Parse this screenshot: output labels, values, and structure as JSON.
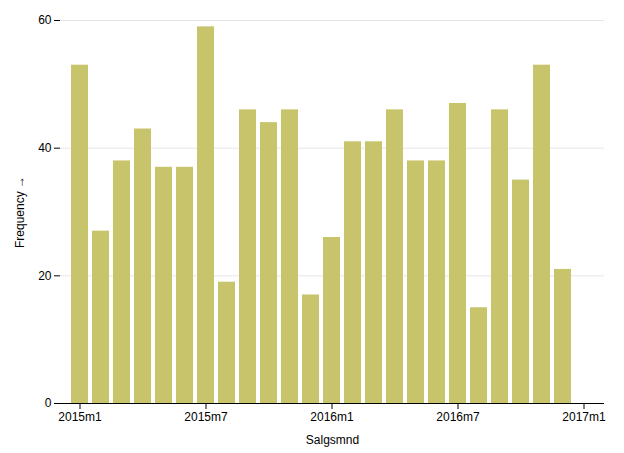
{
  "chart_data": {
    "type": "bar",
    "categories": [
      "2015m1",
      null,
      null,
      null,
      null,
      null,
      "2015m7",
      null,
      null,
      null,
      null,
      null,
      "2016m1",
      null,
      null,
      null,
      null,
      null,
      "2016m7",
      null,
      null,
      null,
      null,
      null,
      "2017m1"
    ],
    "values": [
      53,
      27,
      38,
      43,
      37,
      37,
      59,
      19,
      46,
      44,
      46,
      17,
      26,
      41,
      41,
      46,
      38,
      38,
      47,
      15,
      46,
      35,
      53,
      21,
      null
    ],
    "color": "#c8c46b",
    "xlabel": "Salgsmnd",
    "ylabel": "Frequency",
    "ylim": [
      0,
      60
    ],
    "yticks": [
      0,
      20,
      40,
      60
    ],
    "grid": true
  }
}
